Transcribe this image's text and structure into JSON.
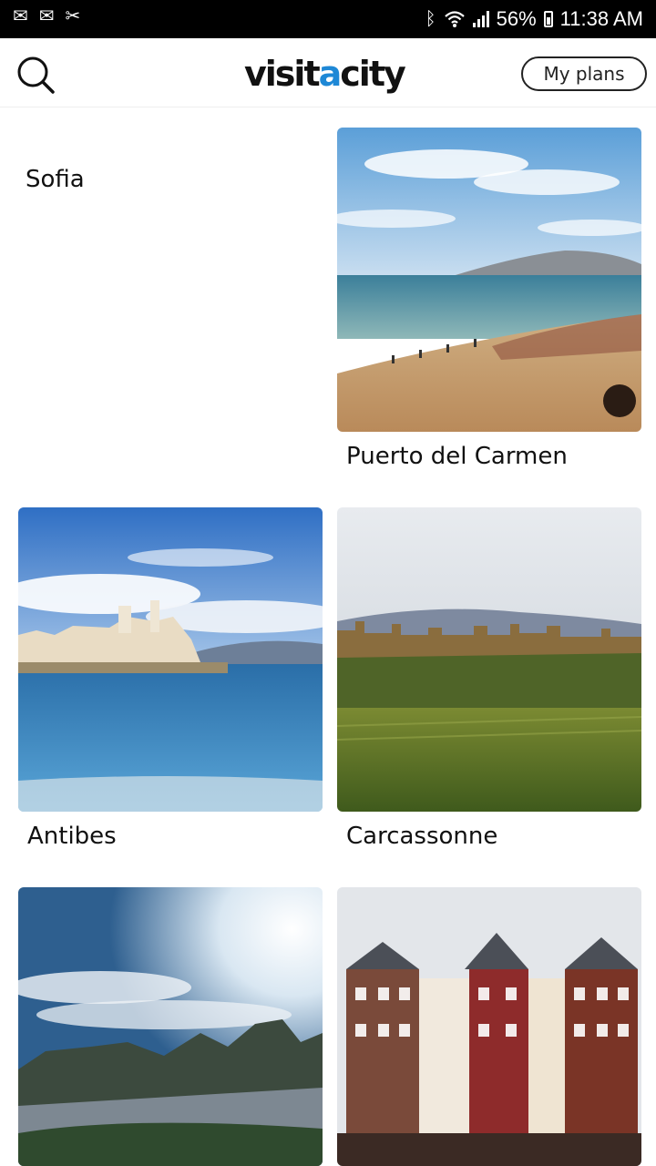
{
  "status_bar": {
    "battery": "56%",
    "time": "11:38 AM",
    "icons": [
      "notification-icon",
      "bluetooth-icon",
      "wifi-icon",
      "signal-icon",
      "battery-icon"
    ]
  },
  "header": {
    "logo_part1": "visit",
    "logo_accent": "a",
    "logo_part2": "city",
    "my_plans_label": "My plans",
    "icons": [
      "search-icon"
    ],
    "accent_color": "#1e88d6"
  },
  "cities": [
    {
      "name": "Sofia"
    },
    {
      "name": "Puerto del Carmen"
    },
    {
      "name": "Antibes"
    },
    {
      "name": "Carcassonne"
    },
    {
      "name": ""
    },
    {
      "name": ""
    }
  ]
}
